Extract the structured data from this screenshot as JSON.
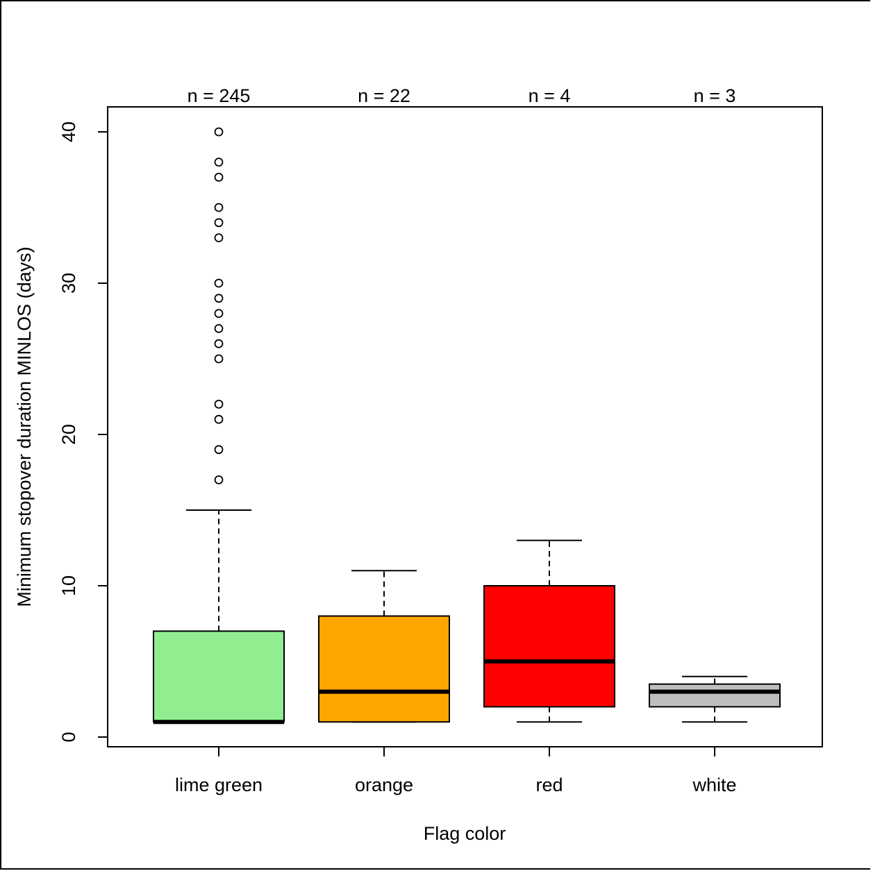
{
  "chart_data": {
    "type": "boxplot",
    "title": "",
    "xlabel": "Flag color",
    "ylabel": "Minimum stopover duration MINLOS (days)",
    "ylim": [
      0,
      42
    ],
    "y_ticks": [
      0,
      10,
      20,
      30,
      40
    ],
    "categories": [
      "lime green",
      "orange",
      "red",
      "white"
    ],
    "counts": [
      "n = 245",
      "n = 22",
      "n = 4",
      "n = 3"
    ],
    "boxes": [
      {
        "name": "lime green",
        "color": "#90EE90",
        "whisker_low": 1,
        "q1": 1,
        "median": 1,
        "q3": 7,
        "whisker_high": 15,
        "outliers": [
          17,
          19,
          21,
          22,
          25,
          26,
          27,
          28,
          29,
          30,
          33,
          34,
          35,
          37,
          38,
          40
        ]
      },
      {
        "name": "orange",
        "color": "#FFA500",
        "whisker_low": 1,
        "q1": 1,
        "median": 3,
        "q3": 8,
        "whisker_high": 11,
        "outliers": []
      },
      {
        "name": "red",
        "color": "#FF0000",
        "whisker_low": 1,
        "q1": 2,
        "median": 5,
        "q3": 10,
        "whisker_high": 13,
        "outliers": []
      },
      {
        "name": "white",
        "color": "#BEBEBE",
        "whisker_low": 1,
        "q1": 2,
        "median": 3,
        "q3": 3.5,
        "whisker_high": 4,
        "outliers": []
      }
    ]
  }
}
